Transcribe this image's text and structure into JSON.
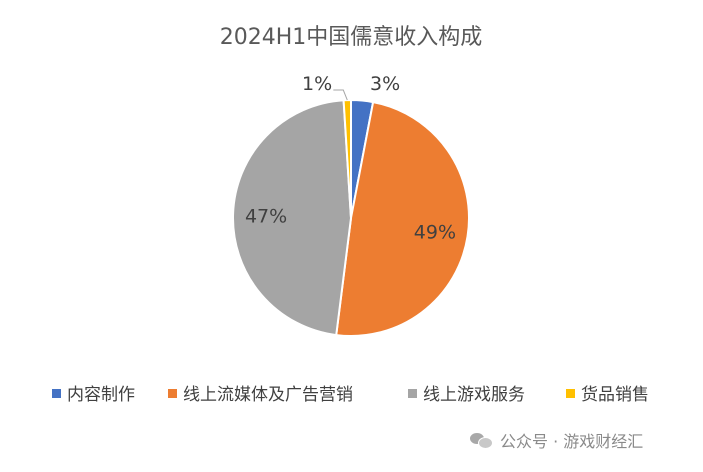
{
  "chart_data": {
    "type": "pie",
    "title": "2024H1中国儒意收入构成",
    "categories": [
      "内容制作",
      "线上流媒体及广告营销",
      "线上游戏服务",
      "货品销售"
    ],
    "values": [
      3,
      49,
      47,
      1
    ],
    "labels": [
      "3%",
      "49%",
      "47%",
      "1%"
    ],
    "colors": [
      "#4472C4",
      "#ED7D31",
      "#A5A5A5",
      "#FFC000"
    ],
    "legend_position": "bottom"
  },
  "watermark": {
    "icon": "wechat-icon",
    "text": "公众号 · 游戏财经汇"
  }
}
